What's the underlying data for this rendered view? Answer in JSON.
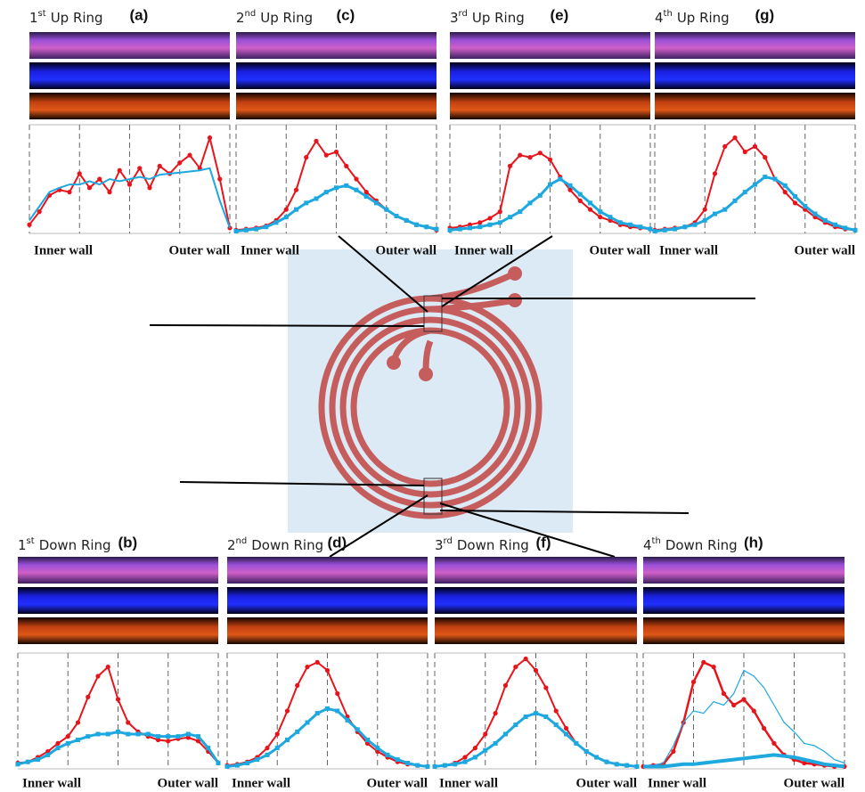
{
  "chart_data": [
    {
      "type": "line",
      "title": {
        "number": "1",
        "suffix": "st",
        "text": "Up Ring"
      },
      "panel": "(a)",
      "xlabel_left": "Inner wall",
      "xlabel_right": "Outer wall",
      "x": [
        0,
        1,
        2,
        3,
        4,
        5,
        6,
        7,
        8,
        9,
        10,
        11,
        12,
        13,
        14,
        15,
        16,
        17,
        18,
        19,
        20
      ],
      "xlim": [
        0,
        20
      ],
      "xticks": [
        0,
        5,
        10,
        15,
        20
      ],
      "ylim": [
        0,
        100
      ],
      "grid": true,
      "series": [
        {
          "color": "#e8141c",
          "width": 2,
          "marker": "circle",
          "values": [
            8,
            20,
            35,
            40,
            38,
            55,
            42,
            50,
            38,
            58,
            45,
            60,
            42,
            62,
            55,
            65,
            72,
            60,
            88,
            50,
            5
          ]
        },
        {
          "color": "#1ea8e0",
          "width": 2,
          "marker": "none",
          "values": [
            12,
            25,
            38,
            42,
            45,
            45,
            48,
            45,
            50,
            48,
            50,
            52,
            50,
            54,
            55,
            56,
            57,
            58,
            60,
            30,
            5
          ]
        }
      ]
    },
    {
      "type": "line",
      "title": {
        "number": "2",
        "suffix": "nd",
        "text": "Up Ring"
      },
      "panel": "(c)",
      "xlabel_left": "Inner wall",
      "xlabel_right": "Outer wall",
      "x": [
        0,
        1,
        2,
        3,
        4,
        5,
        6,
        7,
        8,
        9,
        10,
        11,
        12,
        13,
        14,
        15,
        16,
        17,
        18,
        19,
        20
      ],
      "xlim": [
        0,
        20
      ],
      "xticks": [
        0,
        5,
        10,
        15,
        20
      ],
      "ylim": [
        0,
        100
      ],
      "grid": true,
      "series": [
        {
          "color": "#e8141c",
          "width": 2,
          "marker": "circle",
          "values": [
            3,
            4,
            5,
            7,
            12,
            22,
            40,
            70,
            85,
            72,
            75,
            62,
            50,
            38,
            30,
            22,
            16,
            12,
            8,
            6,
            3
          ]
        },
        {
          "color": "#1ea8e0",
          "width": 3,
          "marker": "square",
          "values": [
            2,
            3,
            4,
            6,
            10,
            15,
            22,
            28,
            32,
            38,
            42,
            44,
            40,
            34,
            28,
            22,
            16,
            12,
            8,
            6,
            4
          ]
        }
      ]
    },
    {
      "type": "line",
      "title": {
        "number": "3",
        "suffix": "rd",
        "text": "Up Ring"
      },
      "panel": "(e)",
      "xlabel_left": "Inner wall",
      "xlabel_right": "Outer wall",
      "x": [
        0,
        1,
        2,
        3,
        4,
        5,
        6,
        7,
        8,
        9,
        10,
        11,
        12,
        13,
        14,
        15,
        16,
        17,
        18,
        19,
        20
      ],
      "xlim": [
        0,
        20
      ],
      "xticks": [
        0,
        5,
        10,
        15,
        20
      ],
      "ylim": [
        0,
        100
      ],
      "grid": true,
      "series": [
        {
          "color": "#e8141c",
          "width": 2,
          "marker": "circle",
          "values": [
            5,
            6,
            8,
            10,
            14,
            20,
            62,
            72,
            70,
            74,
            68,
            52,
            40,
            30,
            22,
            15,
            12,
            8,
            6,
            5,
            4
          ]
        },
        {
          "color": "#1ea8e0",
          "width": 3,
          "marker": "square",
          "values": [
            3,
            4,
            5,
            6,
            8,
            10,
            15,
            20,
            28,
            35,
            45,
            50,
            44,
            36,
            28,
            20,
            15,
            10,
            8,
            6,
            4
          ]
        }
      ]
    },
    {
      "type": "line",
      "title": {
        "number": "4",
        "suffix": "th",
        "text": "Up Ring"
      },
      "panel": "(g)",
      "xlabel_left": "Inner wall",
      "xlabel_right": "Outer wall",
      "x": [
        0,
        1,
        2,
        3,
        4,
        5,
        6,
        7,
        8,
        9,
        10,
        11,
        12,
        13,
        14,
        15,
        16,
        17,
        18,
        19,
        20
      ],
      "xlim": [
        0,
        20
      ],
      "xticks": [
        0,
        5,
        10,
        15,
        20
      ],
      "ylim": [
        0,
        100
      ],
      "grid": true,
      "series": [
        {
          "color": "#e8141c",
          "width": 2,
          "marker": "circle",
          "values": [
            3,
            4,
            5,
            6,
            10,
            22,
            55,
            80,
            88,
            75,
            80,
            70,
            50,
            38,
            28,
            22,
            15,
            10,
            6,
            4,
            3
          ]
        },
        {
          "color": "#1ea8e0",
          "width": 3,
          "marker": "square",
          "values": [
            2,
            3,
            4,
            6,
            8,
            12,
            18,
            22,
            30,
            38,
            45,
            52,
            50,
            44,
            34,
            25,
            18,
            12,
            8,
            5,
            3
          ]
        }
      ]
    },
    {
      "type": "line",
      "title": {
        "number": "1",
        "suffix": "st",
        "text": "Down Ring"
      },
      "panel": "(b)",
      "xlabel_left": "Inner wall",
      "xlabel_right": "Outer wall",
      "x": [
        0,
        1,
        2,
        3,
        4,
        5,
        6,
        7,
        8,
        9,
        10,
        11,
        12,
        13,
        14,
        15,
        16,
        17,
        18,
        19,
        20
      ],
      "xlim": [
        0,
        20
      ],
      "xticks": [
        0,
        5,
        10,
        15,
        20
      ],
      "ylim": [
        0,
        100
      ],
      "grid": true,
      "series": [
        {
          "color": "#e8141c",
          "width": 2,
          "marker": "circle",
          "values": [
            5,
            6,
            10,
            15,
            22,
            28,
            40,
            62,
            80,
            88,
            60,
            40,
            32,
            28,
            25,
            24,
            26,
            27,
            24,
            15,
            5
          ]
        },
        {
          "color": "#1ea8e0",
          "width": 3,
          "marker": "square",
          "values": [
            4,
            6,
            8,
            12,
            18,
            22,
            25,
            28,
            30,
            30,
            32,
            30,
            30,
            30,
            28,
            28,
            28,
            30,
            28,
            18,
            5
          ]
        }
      ]
    },
    {
      "type": "line",
      "title": {
        "number": "2",
        "suffix": "nd",
        "text": "Down Ring"
      },
      "panel": "(d)",
      "xlabel_left": "Inner wall",
      "xlabel_right": "Outer wall",
      "x": [
        0,
        1,
        2,
        3,
        4,
        5,
        6,
        7,
        8,
        9,
        10,
        11,
        12,
        13,
        14,
        15,
        16,
        17,
        18,
        19,
        20
      ],
      "xlim": [
        0,
        20
      ],
      "xticks": [
        0,
        5,
        10,
        15,
        20
      ],
      "ylim": [
        0,
        100
      ],
      "grid": true,
      "series": [
        {
          "color": "#e8141c",
          "width": 2,
          "marker": "circle",
          "values": [
            3,
            4,
            6,
            10,
            18,
            30,
            50,
            72,
            88,
            92,
            85,
            65,
            45,
            32,
            22,
            15,
            10,
            6,
            4,
            3,
            2
          ]
        },
        {
          "color": "#1ea8e0",
          "width": 3,
          "marker": "square",
          "values": [
            2,
            3,
            5,
            8,
            12,
            18,
            25,
            32,
            40,
            48,
            52,
            50,
            42,
            34,
            25,
            18,
            12,
            8,
            5,
            3,
            2
          ]
        }
      ]
    },
    {
      "type": "line",
      "title": {
        "number": "3",
        "suffix": "rd",
        "text": "Down Ring"
      },
      "panel": "(f)",
      "xlabel_left": "Inner wall",
      "xlabel_right": "Outer wall",
      "x": [
        0,
        1,
        2,
        3,
        4,
        5,
        6,
        7,
        8,
        9,
        10,
        11,
        12,
        13,
        14,
        15,
        16,
        17,
        18,
        19,
        20
      ],
      "xlim": [
        0,
        20
      ],
      "xticks": [
        0,
        5,
        10,
        15,
        20
      ],
      "ylim": [
        0,
        100
      ],
      "grid": true,
      "series": [
        {
          "color": "#e8141c",
          "width": 2,
          "marker": "circle",
          "values": [
            2,
            3,
            5,
            10,
            18,
            30,
            48,
            72,
            88,
            95,
            85,
            70,
            50,
            35,
            22,
            15,
            10,
            6,
            4,
            3,
            2
          ]
        },
        {
          "color": "#1ea8e0",
          "width": 3,
          "marker": "square",
          "values": [
            2,
            3,
            4,
            6,
            10,
            16,
            22,
            30,
            38,
            45,
            48,
            45,
            38,
            30,
            22,
            15,
            10,
            6,
            4,
            3,
            2
          ]
        }
      ]
    },
    {
      "type": "line",
      "title": {
        "number": "4",
        "suffix": "th",
        "text": "Down Ring"
      },
      "panel": "(h)",
      "xlabel_left": "Inner wall",
      "xlabel_right": "Outer wall",
      "x": [
        0,
        1,
        2,
        3,
        4,
        5,
        6,
        7,
        8,
        9,
        10,
        11,
        12,
        13,
        14,
        15,
        16,
        17,
        18,
        19,
        20
      ],
      "xlim": [
        0,
        20
      ],
      "xticks": [
        0,
        5,
        10,
        15,
        20
      ],
      "ylim": [
        0,
        100
      ],
      "grid": true,
      "series": [
        {
          "color": "#e8141c",
          "width": 2.5,
          "marker": "circle",
          "values": [
            2,
            3,
            4,
            15,
            40,
            75,
            92,
            88,
            65,
            55,
            60,
            50,
            35,
            22,
            12,
            8,
            5,
            4,
            3,
            2,
            2
          ]
        },
        {
          "color": "#1ea8e0",
          "width": 1.2,
          "marker": "none",
          "values": [
            2,
            3,
            5,
            20,
            40,
            50,
            48,
            58,
            55,
            65,
            85,
            80,
            70,
            55,
            40,
            32,
            22,
            20,
            15,
            8,
            5
          ]
        },
        {
          "color": "#1ea8e0",
          "width": 4,
          "marker": "none",
          "values": [
            2,
            2,
            2,
            3,
            4,
            4,
            5,
            6,
            7,
            8,
            9,
            10,
            11,
            12,
            11,
            10,
            8,
            6,
            4,
            3,
            2
          ]
        }
      ]
    }
  ]
}
